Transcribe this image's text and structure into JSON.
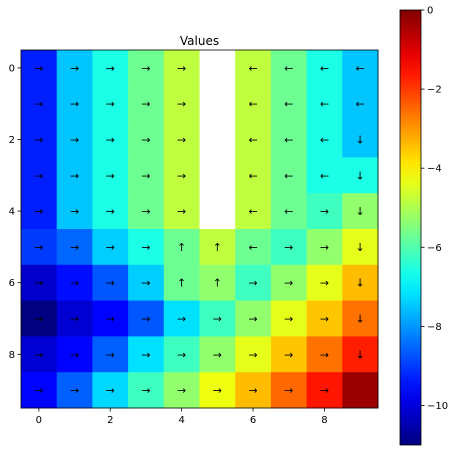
{
  "chart_data": {
    "type": "heatmap",
    "title": "Values",
    "xlabel": "",
    "ylabel": "",
    "colormap": "jet",
    "vmin": -11,
    "vmax": 0,
    "x_ticks": [
      "0",
      "2",
      "4",
      "6",
      "8"
    ],
    "y_ticks": [
      "0",
      "2",
      "4",
      "6",
      "8"
    ],
    "colorbar_ticks": [
      "0",
      "−2",
      "−4",
      "−6",
      "−8",
      "−10"
    ],
    "colorbar_tick_values": [
      0,
      -2,
      -4,
      -6,
      -8,
      -10
    ],
    "rows": 10,
    "cols": 10,
    "values": [
      [
        -9.3,
        -7.5,
        -6.6,
        -5.7,
        -4.8,
        null,
        -4.8,
        -5.7,
        -6.6,
        -7.5
      ],
      [
        -9.3,
        -7.5,
        -6.6,
        -5.7,
        -4.8,
        null,
        -4.8,
        -5.7,
        -6.6,
        -7.5
      ],
      [
        -9.3,
        -7.5,
        -6.6,
        -5.7,
        -4.8,
        null,
        -4.8,
        -5.7,
        -6.6,
        -7.5
      ],
      [
        -9.3,
        -7.5,
        -6.6,
        -5.7,
        -4.8,
        null,
        -4.8,
        -5.7,
        -6.6,
        -6.6
      ],
      [
        -9.3,
        -7.5,
        -6.6,
        -5.7,
        -4.8,
        null,
        -4.8,
        -5.7,
        -6.2,
        -5.3
      ],
      [
        -9.0,
        -8.5,
        -7.4,
        -6.6,
        -5.7,
        -4.8,
        -5.7,
        -6.2,
        -5.3,
        -4.4
      ],
      [
        -10.2,
        -9.5,
        -8.7,
        -7.4,
        -5.7,
        -5.3,
        -6.2,
        -5.3,
        -4.4,
        -3.4
      ],
      [
        -11.0,
        -10.1,
        -9.6,
        -8.7,
        -7.2,
        -6.2,
        -5.3,
        -4.4,
        -3.5,
        -2.6
      ],
      [
        -10.1,
        -9.6,
        -8.6,
        -7.2,
        -6.2,
        -5.3,
        -4.4,
        -3.5,
        -2.6,
        -1.7
      ],
      [
        -9.6,
        -8.6,
        -7.3,
        -6.2,
        -5.3,
        -4.3,
        -3.4,
        -2.5,
        -1.6,
        -0.3
      ]
    ],
    "arrows": [
      [
        "→",
        "→",
        "→",
        "→",
        "→",
        "",
        "←",
        "←",
        "←",
        "←"
      ],
      [
        "→",
        "→",
        "→",
        "→",
        "→",
        "",
        "←",
        "←",
        "←",
        "←"
      ],
      [
        "→",
        "→",
        "→",
        "→",
        "→",
        "",
        "←",
        "←",
        "←",
        "↓"
      ],
      [
        "→",
        "→",
        "→",
        "→",
        "→",
        "",
        "←",
        "←",
        "←",
        "↓"
      ],
      [
        "→",
        "→",
        "→",
        "→",
        "→",
        "",
        "←",
        "←",
        "→",
        "↓"
      ],
      [
        "→",
        "→",
        "→",
        "→",
        "↑",
        "↑",
        "←",
        "→",
        "→",
        "↓"
      ],
      [
        "→",
        "→",
        "→",
        "→",
        "↑",
        "↑",
        "→",
        "→",
        "→",
        "↓"
      ],
      [
        "→",
        "→",
        "→",
        "→",
        "→",
        "→",
        "→",
        "→",
        "→",
        "↓"
      ],
      [
        "→",
        "→",
        "→",
        "→",
        "→",
        "→",
        "→",
        "→",
        "→",
        "↓"
      ],
      [
        "→",
        "→",
        "→",
        "→",
        "→",
        "→",
        "→",
        "→",
        "→",
        ""
      ]
    ],
    "masked_color": "#ffffff",
    "grid": false,
    "legend": "colorbar-right"
  }
}
